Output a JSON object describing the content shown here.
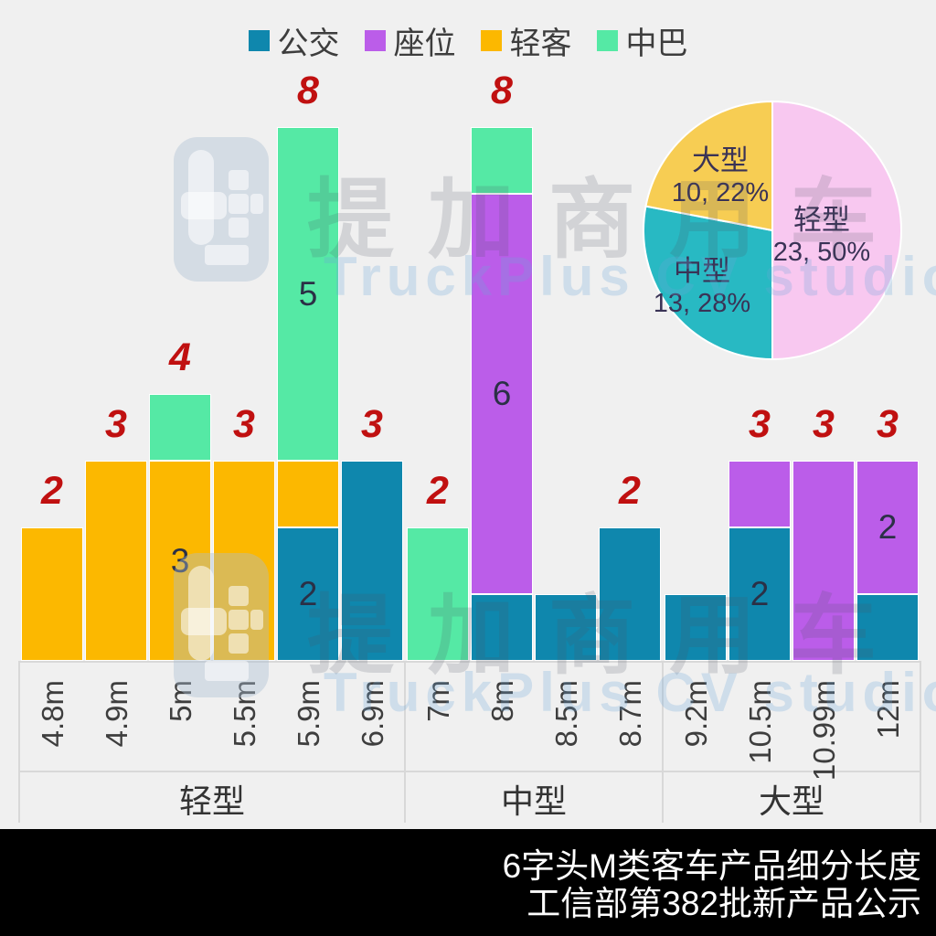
{
  "legend": {
    "position": "top",
    "items": [
      {
        "label": "公交",
        "color": "#0f87ad"
      },
      {
        "label": "座位",
        "color": "#bb5de9"
      },
      {
        "label": "轻客",
        "color": "#fcb800"
      },
      {
        "label": "中巴",
        "color": "#55e9a5"
      }
    ]
  },
  "chart_data": {
    "type": "bar",
    "stacked": true,
    "legend_position": "top",
    "grid": false,
    "value_axis_visible": false,
    "categories": [
      "4.8m",
      "4.9m",
      "5m",
      "5.5m",
      "5.9m",
      "6.9m",
      "7m",
      "8m",
      "8.5m",
      "8.7m",
      "9.2m",
      "10.5m",
      "10.99m",
      "12m"
    ],
    "series_colors": {
      "公交": "#0f87ad",
      "座位": "#bb5de9",
      "轻客": "#fcb800",
      "中巴": "#55e9a5"
    },
    "total_label_color": "#c01010",
    "groups": [
      {
        "label": "轻型",
        "group_total": 23,
        "bars": [
          {
            "category": "4.8m",
            "total": 2,
            "total_label": "2",
            "segments": [
              {
                "series": "轻客",
                "value": 2
              }
            ]
          },
          {
            "category": "4.9m",
            "total": 3,
            "total_label": "3",
            "segments": [
              {
                "series": "轻客",
                "value": 3
              }
            ]
          },
          {
            "category": "5m",
            "total": 4,
            "total_label": "4",
            "segments": [
              {
                "series": "轻客",
                "value": 3,
                "label": "3"
              },
              {
                "series": "中巴",
                "value": 1
              }
            ]
          },
          {
            "category": "5.5m",
            "total": 3,
            "total_label": "3",
            "segments": [
              {
                "series": "轻客",
                "value": 3
              }
            ]
          },
          {
            "category": "5.9m",
            "total": 8,
            "total_label": "8",
            "segments": [
              {
                "series": "公交",
                "value": 2,
                "label": "2"
              },
              {
                "series": "轻客",
                "value": 1
              },
              {
                "series": "中巴",
                "value": 5,
                "label": "5"
              }
            ]
          },
          {
            "category": "6.9m",
            "total": 3,
            "total_label": "3",
            "segments": [
              {
                "series": "公交",
                "value": 3
              }
            ]
          }
        ]
      },
      {
        "label": "中型",
        "group_total": 13,
        "bars": [
          {
            "category": "7m",
            "total": 2,
            "total_label": "2",
            "segments": [
              {
                "series": "中巴",
                "value": 2
              }
            ]
          },
          {
            "category": "8m",
            "total": 8,
            "total_label": "8",
            "segments": [
              {
                "series": "公交",
                "value": 1
              },
              {
                "series": "座位",
                "value": 6,
                "label": "6"
              },
              {
                "series": "中巴",
                "value": 1
              }
            ]
          },
          {
            "category": "8.5m",
            "total": 1,
            "total_label": null,
            "segments": [
              {
                "series": "公交",
                "value": 1
              }
            ]
          },
          {
            "category": "8.7m",
            "total": 2,
            "total_label": "2",
            "segments": [
              {
                "series": "公交",
                "value": 2
              }
            ]
          }
        ]
      },
      {
        "label": "大型",
        "group_total": 10,
        "bars": [
          {
            "category": "9.2m",
            "total": 1,
            "total_label": null,
            "segments": [
              {
                "series": "公交",
                "value": 1
              }
            ]
          },
          {
            "category": "10.5m",
            "total": 3,
            "total_label": "3",
            "segments": [
              {
                "series": "公交",
                "value": 2,
                "label": "2"
              },
              {
                "series": "座位",
                "value": 1
              }
            ]
          },
          {
            "category": "10.99m",
            "total": 3,
            "total_label": "3",
            "segments": [
              {
                "series": "座位",
                "value": 3
              }
            ]
          },
          {
            "category": "12m",
            "total": 3,
            "total_label": "3",
            "segments": [
              {
                "series": "公交",
                "value": 1
              },
              {
                "series": "座位",
                "value": 2,
                "label": "2"
              }
            ]
          }
        ]
      }
    ]
  },
  "pie_chart_data": {
    "type": "pie",
    "start_angle_deg": 0,
    "direction": "clockwise",
    "slices": [
      {
        "label": "轻型",
        "value": 23,
        "pct": 50,
        "display": "23, 50%",
        "color": "#f8c8f0"
      },
      {
        "label": "中型",
        "value": 13,
        "pct": 28,
        "display": "13, 28%",
        "color": "#28b9c3"
      },
      {
        "label": "大型",
        "value": 10,
        "pct": 22,
        "display": "10, 22%",
        "color": "#f7cd53"
      }
    ],
    "label_color": "#3a3356"
  },
  "watermark": {
    "cn": "提加商用车",
    "en": "TruckPlus CV studio"
  },
  "footer": {
    "line1": "6字头M类客车产品细分长度",
    "line2": "工信部第382批新产品公示"
  }
}
